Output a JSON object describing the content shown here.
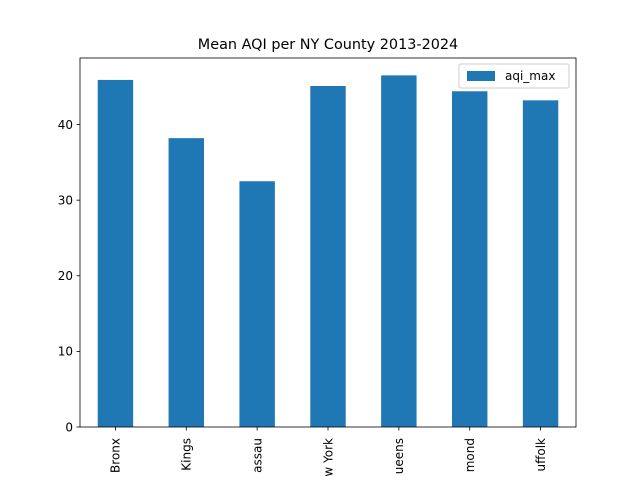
{
  "chart_data": {
    "type": "bar",
    "title": "Mean AQI per NY County 2013-2024",
    "xlabel": "",
    "ylabel": "",
    "categories": [
      "Bronx",
      "Kings",
      "Nassau",
      "New York",
      "Queens",
      "Richmond",
      "Suffolk"
    ],
    "category_labels_visible": [
      "Bronx",
      "Kings",
      "assau",
      "w York",
      "ueens",
      "mond",
      "uffolk"
    ],
    "series": [
      {
        "name": "aqi_max",
        "values": [
          45.9,
          38.2,
          32.5,
          45.1,
          46.5,
          44.4,
          43.2
        ],
        "color": "#1f77b4"
      }
    ],
    "ylim": [
      0,
      48.8
    ],
    "yticks": [
      0,
      10,
      20,
      30,
      40
    ],
    "ytick_labels": [
      "0",
      "10",
      "20",
      "30",
      "40"
    ],
    "grid": false,
    "legend": {
      "placement": "top-right",
      "entries": [
        "aqi_max"
      ]
    }
  }
}
